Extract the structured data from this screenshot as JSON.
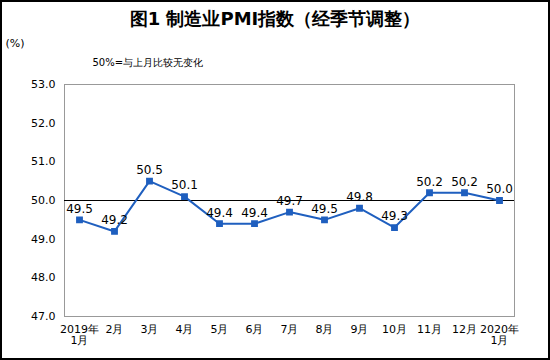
{
  "chart_data": {
    "type": "line",
    "title": "图1 制造业PMI指数（经季节调整）",
    "y_label": "(%)",
    "annotation": "50%=与上月比较无变化",
    "categories": [
      "2019年\n1月",
      "2月",
      "3月",
      "4月",
      "5月",
      "6月",
      "7月",
      "8月",
      "9月",
      "10月",
      "11月",
      "12月",
      "2020年\n1月"
    ],
    "values": [
      49.5,
      49.2,
      50.5,
      50.1,
      49.4,
      49.4,
      49.7,
      49.5,
      49.8,
      49.3,
      50.2,
      50.2,
      50.0
    ],
    "value_labels": [
      "49.5",
      "49.2",
      "50.5",
      "50.1",
      "49.4",
      "49.4",
      "49.7",
      "49.5",
      "49.8",
      "49.3",
      "50.2",
      "50.2",
      "50.0"
    ],
    "color": "#1f5fbf",
    "marker": "square",
    "data_labels": true,
    "reference_line": 50,
    "ylim": [
      47,
      53
    ],
    "yticks": [
      47,
      48,
      49,
      50,
      51,
      52,
      53
    ],
    "grid": false
  }
}
